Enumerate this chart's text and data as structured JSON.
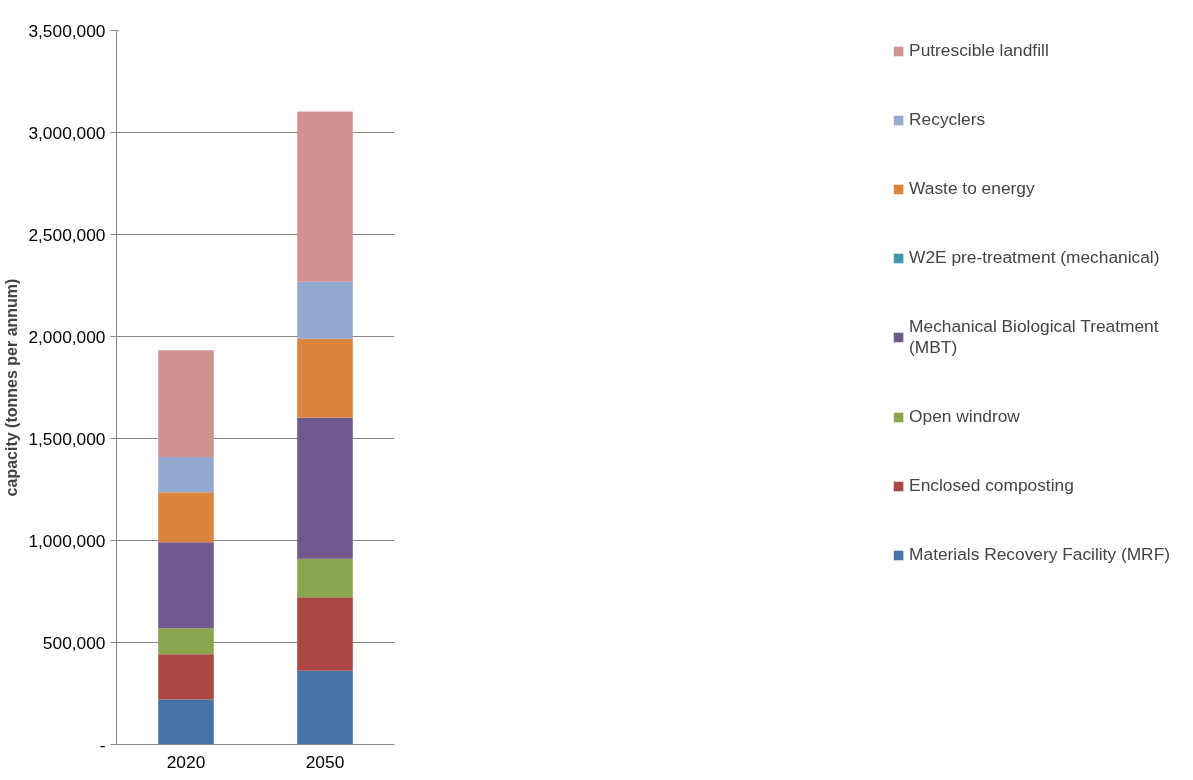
{
  "chart_data": {
    "type": "bar",
    "stacked": true,
    "ylabel": "capacity (tonnes per annum)",
    "categories": [
      "2020",
      "2050"
    ],
    "series": [
      {
        "name": "Materials Recovery Facility (MRF)",
        "color": "#4572a7",
        "values": [
          220000,
          361000
        ]
      },
      {
        "name": "Enclosed composting",
        "color": "#aa4643",
        "values": [
          222000,
          361000
        ]
      },
      {
        "name": "Open windrow",
        "color": "#89a54e",
        "values": [
          128000,
          188000
        ]
      },
      {
        "name": "Mechanical Biological Treatment (MBT)",
        "color": "#71588f",
        "values": [
          422000,
          692000
        ]
      },
      {
        "name": "W2E pre-treatment (mechanical)",
        "color": "#4198af",
        "values": [
          0,
          0
        ]
      },
      {
        "name": "Waste to energy",
        "color": "#db843d",
        "values": [
          244000,
          387000
        ]
      },
      {
        "name": "Recyclers",
        "color": "#93a9cf",
        "values": [
          173000,
          279000
        ]
      },
      {
        "name": "Putrescible landfill",
        "color": "#d19392",
        "values": [
          524000,
          835000
        ]
      }
    ],
    "ylim": [
      0,
      3500000
    ],
    "yticks": [
      {
        "value": 0,
        "label": "-"
      },
      {
        "value": 500000,
        "label": "500,000"
      },
      {
        "value": 1000000,
        "label": "1,000,000"
      },
      {
        "value": 1500000,
        "label": "1,500,000"
      },
      {
        "value": 2000000,
        "label": "2,000,000"
      },
      {
        "value": 2500000,
        "label": "2,500,000"
      },
      {
        "value": 3000000,
        "label": "3,000,000"
      },
      {
        "value": 3500000,
        "label": "3,500,000"
      }
    ],
    "grid": "y",
    "legend": "right"
  }
}
